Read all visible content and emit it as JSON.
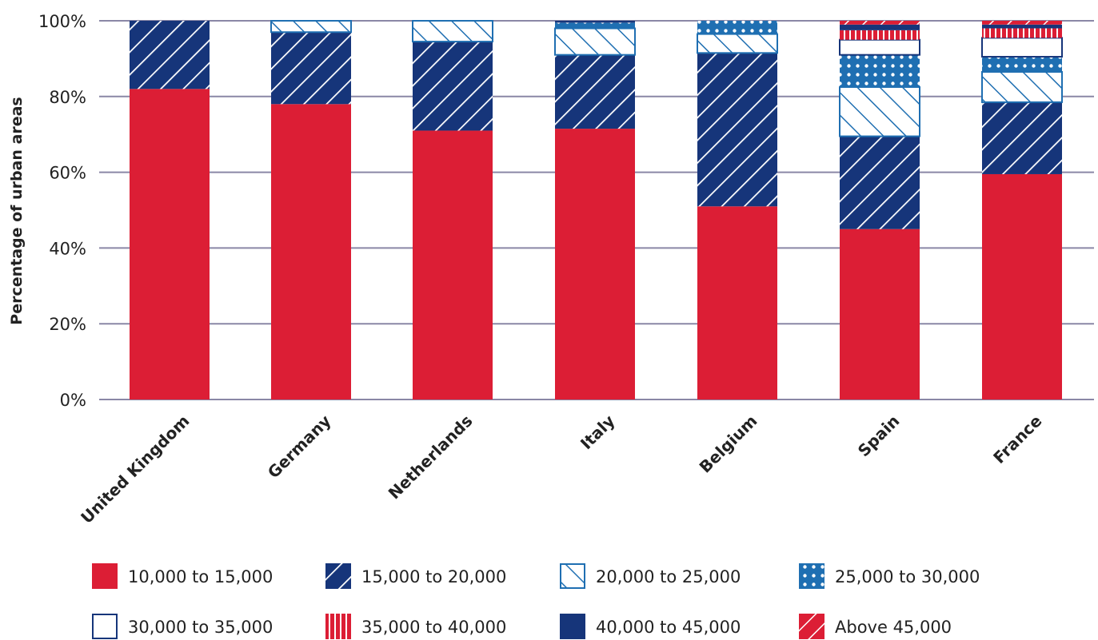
{
  "chart_data": {
    "type": "bar",
    "stacked": true,
    "title": "",
    "xlabel": "",
    "ylabel": "Percentage of urban areas",
    "ylim": [
      0,
      100
    ],
    "y_ticks": [
      "0%",
      "20%",
      "40%",
      "60%",
      "80%",
      "100%"
    ],
    "grid": true,
    "legend_position": "bottom",
    "categories": [
      "United Kingdom",
      "Germany",
      "Netherlands",
      "Italy",
      "Belgium",
      "Spain",
      "France"
    ],
    "series": [
      {
        "name": "10,000 to 15,000",
        "color": "#dc1e35",
        "pattern": "solid-red",
        "values": [
          82,
          78,
          71,
          71.5,
          51,
          45,
          59.5
        ]
      },
      {
        "name": "15,000 to 20,000",
        "color": "#16357a",
        "pattern": "navy-diagonal",
        "values": [
          18,
          19,
          23.5,
          19.5,
          40.5,
          24.5,
          19
        ]
      },
      {
        "name": "20,000 to 25,000",
        "color": "#1f6fb2",
        "pattern": "blue-backslash",
        "values": [
          0,
          3,
          5.5,
          7,
          5,
          13,
          8
        ]
      },
      {
        "name": "25,000 to 30,000",
        "color": "#1f6fb2",
        "pattern": "blue-dots",
        "values": [
          0,
          0,
          0,
          1.5,
          3.5,
          8.5,
          4
        ]
      },
      {
        "name": "30,000 to 35,000",
        "color": "#16357a",
        "pattern": "white-outline",
        "values": [
          0,
          0,
          0,
          0,
          0,
          4,
          5
        ]
      },
      {
        "name": "35,000 to 40,000",
        "color": "#dc1e35",
        "pattern": "red-vertical",
        "values": [
          0,
          0,
          0,
          0,
          0,
          2.5,
          2.5
        ]
      },
      {
        "name": "40,000 to 45,000",
        "color": "#16357a",
        "pattern": "solid-navy",
        "values": [
          0,
          0,
          0,
          0.5,
          0,
          1.5,
          1
        ]
      },
      {
        "name": "Above 45,000",
        "color": "#dc1e35",
        "pattern": "red-diagonal",
        "values": [
          0,
          0,
          0,
          0,
          0,
          1,
          1
        ]
      }
    ]
  }
}
